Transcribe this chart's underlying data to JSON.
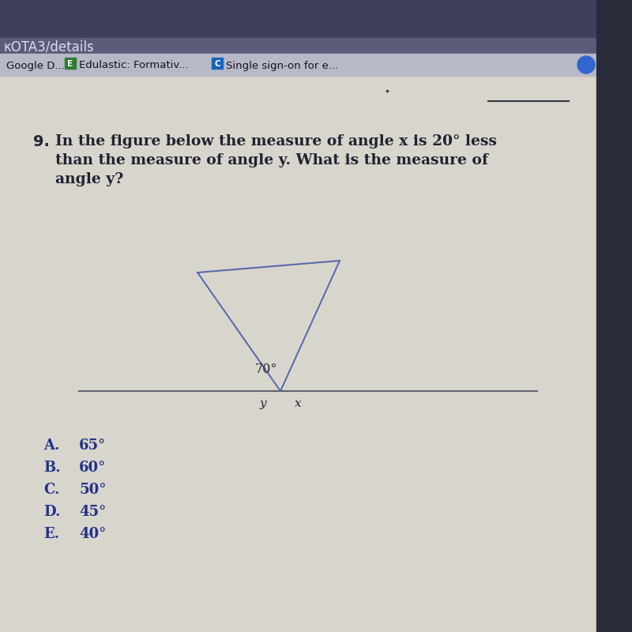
{
  "url_text": "κOTA3/details",
  "bookmarks": [
    "Google D...",
    "Edulastic: Formativ...",
    "Single sign-on for e..."
  ],
  "question_num": "9.",
  "q_line1": "In the figure below the measure of angle x is 20° less",
  "q_line2": "than the measure of angle y. What is the measure of",
  "q_line3": "angle y?",
  "angle_label": "70°",
  "label_y": "y",
  "label_x": "x",
  "choices_letters": [
    "A.",
    "B.",
    "C.",
    "D.",
    "E."
  ],
  "choices_values": [
    "65°",
    "60°",
    "50°",
    "45°",
    "40°"
  ],
  "bg_top": "#3d3f5c",
  "bg_url_bar": "#4a4c6a",
  "bg_bookmark": "#b8b9c8",
  "bg_content": "#d8d5cc",
  "bg_right_edge": "#2a2b3a",
  "triangle_color": "#5566aa",
  "line_color": "#555566",
  "text_color_dark": "#222233",
  "text_color_blue": "#3344aa",
  "choice_letter_color": "#223388",
  "url_color": "#ccccdd",
  "bookmark_text_color": "#111122",
  "hint_line_color": "#333344",
  "e_icon_color": "#2e7d32",
  "c_icon_color": "#1565c0",
  "dot_color": "#3366cc"
}
